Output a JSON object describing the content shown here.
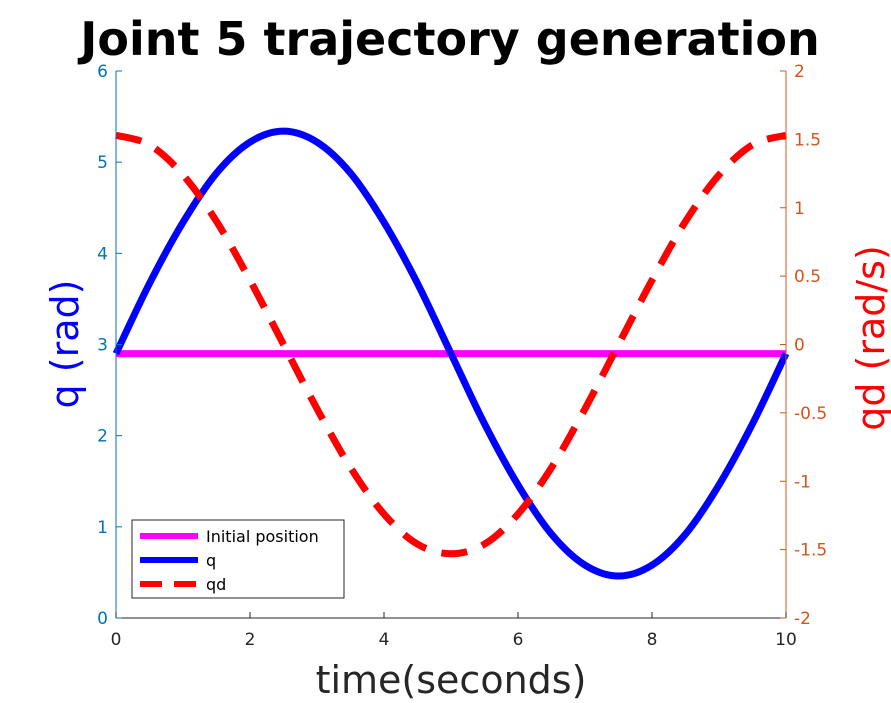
{
  "chart_data": {
    "type": "line",
    "title": "Joint 5 trajectory generation",
    "xlabel": "time(seconds)",
    "ylabel_left": "q (rad)",
    "ylabel_right": "qd (rad/s)",
    "xlim": [
      0,
      10
    ],
    "ylim_left": [
      0,
      6
    ],
    "ylim_right": [
      -2,
      2
    ],
    "x_ticks": [
      "0",
      "2",
      "4",
      "6",
      "8",
      "10"
    ],
    "y_left_ticks": [
      "0",
      "1",
      "2",
      "3",
      "4",
      "5",
      "6"
    ],
    "y_right_ticks": [
      "-2",
      "-1.5",
      "-1",
      "-0.5",
      "0",
      "0.5",
      "1",
      "1.5",
      "2"
    ],
    "grid": false,
    "legend_position": "bottom-left",
    "colors": {
      "left_axis": "#0072bd",
      "right_axis": "#d95319",
      "initial_position": "#ff00ff",
      "q": "#0000ff",
      "qd": "#ff0000"
    },
    "series": [
      {
        "name": "Initial position",
        "axis": "left",
        "style": "solid",
        "x": [
          0,
          10
        ],
        "y": [
          2.9,
          2.9
        ]
      },
      {
        "name": "q",
        "axis": "left",
        "style": "solid",
        "x": [
          0,
          0.5,
          1,
          1.5,
          2,
          2.5,
          3,
          3.5,
          4,
          4.5,
          5,
          5.5,
          6,
          6.5,
          7,
          7.5,
          8,
          8.5,
          9,
          9.5,
          10
        ],
        "y": [
          2.9,
          3.67,
          4.34,
          4.88,
          5.22,
          5.34,
          5.22,
          4.88,
          4.34,
          3.67,
          2.9,
          2.13,
          1.46,
          0.92,
          0.58,
          0.46,
          0.58,
          0.92,
          1.46,
          2.13,
          2.9
        ]
      },
      {
        "name": "qd",
        "axis": "right",
        "style": "dashed",
        "x": [
          0,
          0.5,
          1,
          1.5,
          2,
          2.5,
          3,
          3.5,
          4,
          4.5,
          5,
          5.5,
          6,
          6.5,
          7,
          7.5,
          8,
          8.5,
          9,
          9.5,
          10
        ],
        "y": [
          1.53,
          1.46,
          1.24,
          0.9,
          0.47,
          0.0,
          -0.47,
          -0.9,
          -1.24,
          -1.46,
          -1.53,
          -1.46,
          -1.24,
          -0.9,
          -0.47,
          0.0,
          0.47,
          0.9,
          1.24,
          1.46,
          1.53
        ]
      }
    ]
  }
}
